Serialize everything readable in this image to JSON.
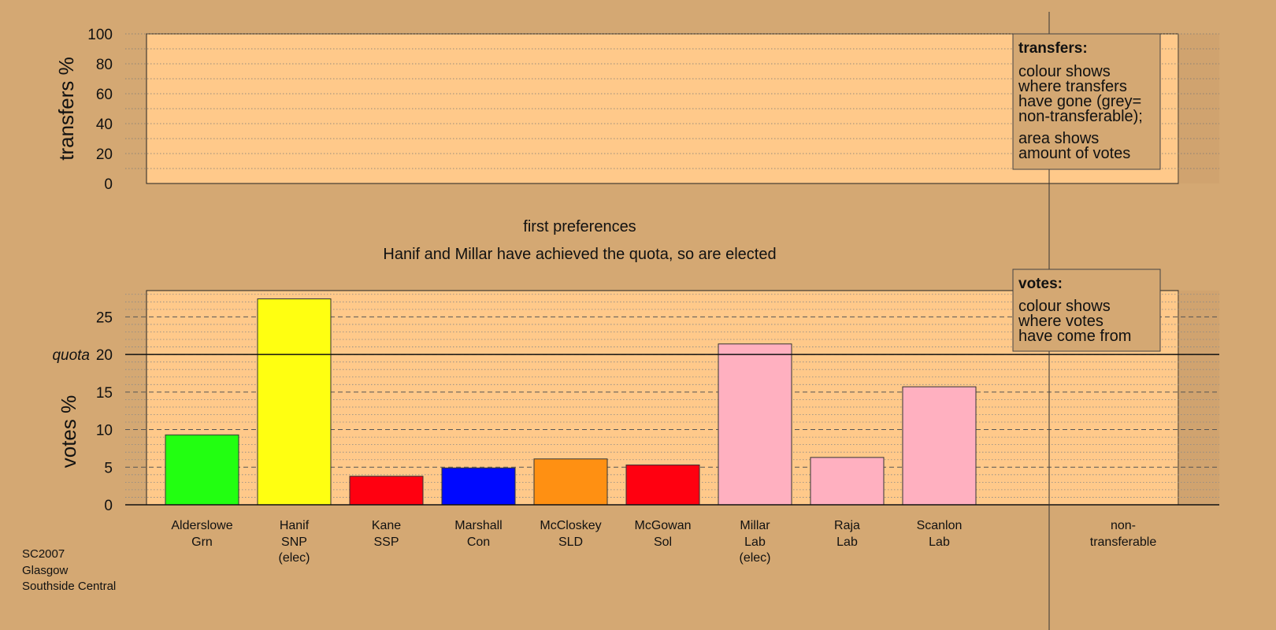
{
  "colors": {
    "background": "#d4a873",
    "plot_area": "#ffc98a",
    "shade": "#c89a66"
  },
  "chart_data": [
    {
      "type": "bar",
      "id": "transfers",
      "ylabel": "transfers %",
      "ylim": [
        0,
        100
      ],
      "yticks": [
        0,
        20,
        40,
        60,
        80,
        100
      ],
      "grid": "dotted, every 10",
      "values": [],
      "legend": {
        "title": "transfers:",
        "lines": [
          "colour shows",
          "where transfers",
          "have gone (grey=",
          "non-transferable);",
          "area shows",
          "amount of votes"
        ],
        "position": "top-right"
      }
    },
    {
      "type": "bar",
      "id": "votes",
      "ylabel": "votes %",
      "ylim": [
        0,
        28.5
      ],
      "yticks": [
        0,
        5,
        10,
        15,
        20,
        25
      ],
      "quota": 20,
      "quota_label": "quota",
      "caption_lines": [
        "first preferences",
        "Hanif and Millar have achieved the quota, so are elected"
      ],
      "categories": [
        {
          "name": "Alderslowe",
          "party": "Grn",
          "note": ""
        },
        {
          "name": "Hanif",
          "party": "SNP",
          "note": "(elec)"
        },
        {
          "name": "Kane",
          "party": "SSP",
          "note": ""
        },
        {
          "name": "Marshall",
          "party": "Con",
          "note": ""
        },
        {
          "name": "McCloskey",
          "party": "SLD",
          "note": ""
        },
        {
          "name": "McGowan",
          "party": "Sol",
          "note": ""
        },
        {
          "name": "Millar",
          "party": "Lab",
          "note": "(elec)"
        },
        {
          "name": "Raja",
          "party": "Lab",
          "note": ""
        },
        {
          "name": "Scanlon",
          "party": "Lab",
          "note": ""
        }
      ],
      "values": [
        9.3,
        27.4,
        3.8,
        4.9,
        6.1,
        5.3,
        21.4,
        6.3,
        15.7
      ],
      "bar_colors": [
        "#22ff11",
        "#ffff11",
        "#ff0010",
        "#0008ff",
        "#ff9012",
        "#ff0010",
        "#ffb0c0",
        "#ffb0c0",
        "#ffb0c0"
      ],
      "nontransferable_label": [
        "non-",
        "transferable"
      ],
      "legend": {
        "title": "votes:",
        "lines": [
          "colour shows",
          "where votes",
          "have come from"
        ],
        "position": "top-right"
      }
    }
  ],
  "footer": [
    "SC2007",
    "Glasgow",
    "Southside Central"
  ]
}
